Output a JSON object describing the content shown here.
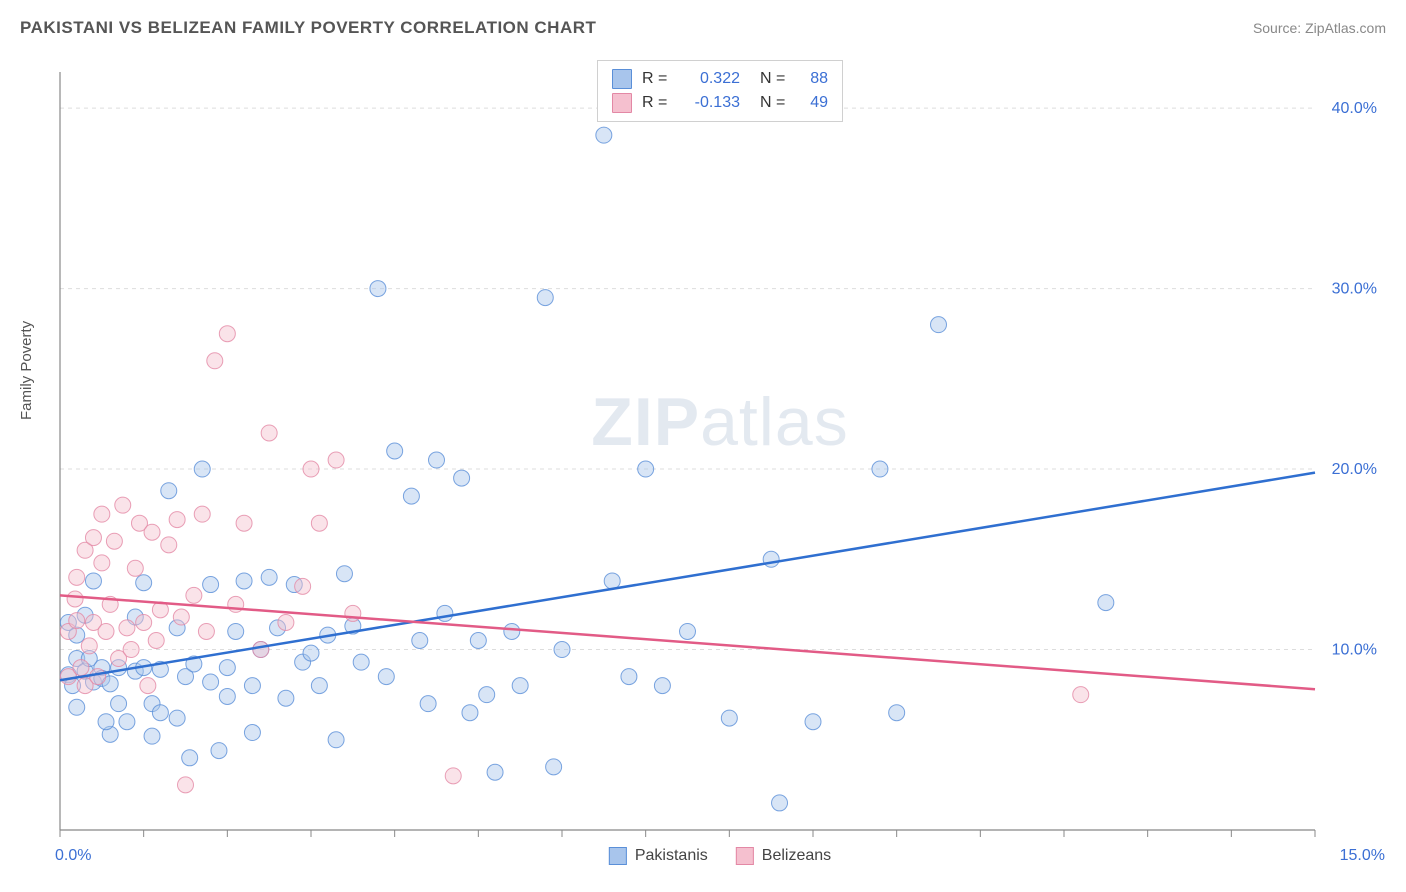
{
  "title": "PAKISTANI VS BELIZEAN FAMILY POVERTY CORRELATION CHART",
  "source": "Source: ZipAtlas.com",
  "ylabel": "Family Poverty",
  "watermark_bold": "ZIP",
  "watermark_light": "atlas",
  "chart": {
    "type": "scatter",
    "background_color": "#ffffff",
    "grid_color": "#dddddd",
    "axis_color": "#888888",
    "tick_color": "#888888",
    "xlim": [
      0,
      15
    ],
    "ylim": [
      0,
      42
    ],
    "x_ticks_minor_step": 1,
    "y_gridlines": [
      10,
      20,
      30,
      40
    ],
    "y_tick_labels": [
      "10.0%",
      "20.0%",
      "30.0%",
      "40.0%"
    ],
    "y_tick_color": "#3b6fd4",
    "x_tick_start": "0.0%",
    "x_tick_end": "15.0%",
    "x_tick_color": "#3b6fd4",
    "marker_radius": 8,
    "marker_opacity": 0.45,
    "line_width": 2.5,
    "series": [
      {
        "name": "Pakistanis",
        "color_fill": "#a8c5ec",
        "color_stroke": "#5a8fd8",
        "line_color": "#2f6fd0",
        "R": "0.322",
        "N": "88",
        "R_color": "#3b6fd4",
        "N_color": "#3b6fd4",
        "trend": {
          "x1": 0,
          "y1": 8.3,
          "x2": 15,
          "y2": 19.8
        },
        "points": [
          [
            0.1,
            11.5
          ],
          [
            0.1,
            8.6
          ],
          [
            0.2,
            9.5
          ],
          [
            0.2,
            10.8
          ],
          [
            0.2,
            6.8
          ],
          [
            0.3,
            8.8
          ],
          [
            0.3,
            11.9
          ],
          [
            0.4,
            8.2
          ],
          [
            0.4,
            13.8
          ],
          [
            0.5,
            9.0
          ],
          [
            0.5,
            8.4
          ],
          [
            0.6,
            8.1
          ],
          [
            0.6,
            5.3
          ],
          [
            0.7,
            9.0
          ],
          [
            0.7,
            7.0
          ],
          [
            0.8,
            6.0
          ],
          [
            0.9,
            8.8
          ],
          [
            0.9,
            11.8
          ],
          [
            1.0,
            9.0
          ],
          [
            1.0,
            13.7
          ],
          [
            1.1,
            7.0
          ],
          [
            1.1,
            5.2
          ],
          [
            1.2,
            6.5
          ],
          [
            1.2,
            8.9
          ],
          [
            1.3,
            18.8
          ],
          [
            1.4,
            11.2
          ],
          [
            1.4,
            6.2
          ],
          [
            1.5,
            8.5
          ],
          [
            1.6,
            9.2
          ],
          [
            1.7,
            20.0
          ],
          [
            1.8,
            13.6
          ],
          [
            1.8,
            8.2
          ],
          [
            1.9,
            4.4
          ],
          [
            2.0,
            7.4
          ],
          [
            2.0,
            9.0
          ],
          [
            2.1,
            11.0
          ],
          [
            2.2,
            13.8
          ],
          [
            2.3,
            8.0
          ],
          [
            2.3,
            5.4
          ],
          [
            2.4,
            10.0
          ],
          [
            2.5,
            14.0
          ],
          [
            2.6,
            11.2
          ],
          [
            2.7,
            7.3
          ],
          [
            2.8,
            13.6
          ],
          [
            2.9,
            9.3
          ],
          [
            3.0,
            9.8
          ],
          [
            3.1,
            8.0
          ],
          [
            3.2,
            10.8
          ],
          [
            3.3,
            5.0
          ],
          [
            3.4,
            14.2
          ],
          [
            3.5,
            11.3
          ],
          [
            3.6,
            9.3
          ],
          [
            3.8,
            30.0
          ],
          [
            3.9,
            8.5
          ],
          [
            4.0,
            21.0
          ],
          [
            4.2,
            18.5
          ],
          [
            4.3,
            10.5
          ],
          [
            4.4,
            7.0
          ],
          [
            4.5,
            20.5
          ],
          [
            4.6,
            12.0
          ],
          [
            4.8,
            19.5
          ],
          [
            4.9,
            6.5
          ],
          [
            5.0,
            10.5
          ],
          [
            5.1,
            7.5
          ],
          [
            5.2,
            3.2
          ],
          [
            5.4,
            11.0
          ],
          [
            5.5,
            8.0
          ],
          [
            5.8,
            29.5
          ],
          [
            5.9,
            3.5
          ],
          [
            6.0,
            10.0
          ],
          [
            6.5,
            38.5
          ],
          [
            6.6,
            13.8
          ],
          [
            6.8,
            8.5
          ],
          [
            7.0,
            20.0
          ],
          [
            7.2,
            8.0
          ],
          [
            7.5,
            11.0
          ],
          [
            8.0,
            6.2
          ],
          [
            8.5,
            15.0
          ],
          [
            8.6,
            1.5
          ],
          [
            9.0,
            6.0
          ],
          [
            9.8,
            20.0
          ],
          [
            10.0,
            6.5
          ],
          [
            10.5,
            28.0
          ],
          [
            12.5,
            12.6
          ],
          [
            0.15,
            8.0
          ],
          [
            0.35,
            9.5
          ],
          [
            0.55,
            6.0
          ],
          [
            1.55,
            4.0
          ]
        ]
      },
      {
        "name": "Belizeans",
        "color_fill": "#f5c0cf",
        "color_stroke": "#e388a5",
        "line_color": "#e25b86",
        "R": "-0.133",
        "N": "49",
        "R_color": "#3b6fd4",
        "N_color": "#3b6fd4",
        "trend": {
          "x1": 0,
          "y1": 13.0,
          "x2": 15,
          "y2": 7.8
        },
        "points": [
          [
            0.1,
            11.0
          ],
          [
            0.1,
            8.5
          ],
          [
            0.2,
            14.0
          ],
          [
            0.2,
            11.6
          ],
          [
            0.25,
            9.0
          ],
          [
            0.3,
            15.5
          ],
          [
            0.3,
            8.0
          ],
          [
            0.35,
            10.2
          ],
          [
            0.4,
            16.2
          ],
          [
            0.4,
            11.5
          ],
          [
            0.45,
            8.5
          ],
          [
            0.5,
            14.8
          ],
          [
            0.5,
            17.5
          ],
          [
            0.55,
            11.0
          ],
          [
            0.6,
            12.5
          ],
          [
            0.65,
            16.0
          ],
          [
            0.7,
            9.5
          ],
          [
            0.75,
            18.0
          ],
          [
            0.8,
            11.2
          ],
          [
            0.85,
            10.0
          ],
          [
            0.9,
            14.5
          ],
          [
            0.95,
            17.0
          ],
          [
            1.0,
            11.5
          ],
          [
            1.05,
            8.0
          ],
          [
            1.1,
            16.5
          ],
          [
            1.15,
            10.5
          ],
          [
            1.2,
            12.2
          ],
          [
            1.3,
            15.8
          ],
          [
            1.4,
            17.2
          ],
          [
            1.45,
            11.8
          ],
          [
            1.5,
            2.5
          ],
          [
            1.6,
            13.0
          ],
          [
            1.7,
            17.5
          ],
          [
            1.75,
            11.0
          ],
          [
            1.85,
            26.0
          ],
          [
            2.0,
            27.5
          ],
          [
            2.1,
            12.5
          ],
          [
            2.2,
            17.0
          ],
          [
            2.4,
            10.0
          ],
          [
            2.5,
            22.0
          ],
          [
            2.7,
            11.5
          ],
          [
            2.9,
            13.5
          ],
          [
            3.0,
            20.0
          ],
          [
            3.1,
            17.0
          ],
          [
            3.3,
            20.5
          ],
          [
            3.5,
            12.0
          ],
          [
            4.7,
            3.0
          ],
          [
            12.2,
            7.5
          ],
          [
            0.18,
            12.8
          ]
        ]
      }
    ]
  },
  "legend_bottom": [
    {
      "label": "Pakistanis",
      "fill": "#a8c5ec",
      "stroke": "#5a8fd8"
    },
    {
      "label": "Belizeans",
      "fill": "#f5c0cf",
      "stroke": "#e388a5"
    }
  ]
}
